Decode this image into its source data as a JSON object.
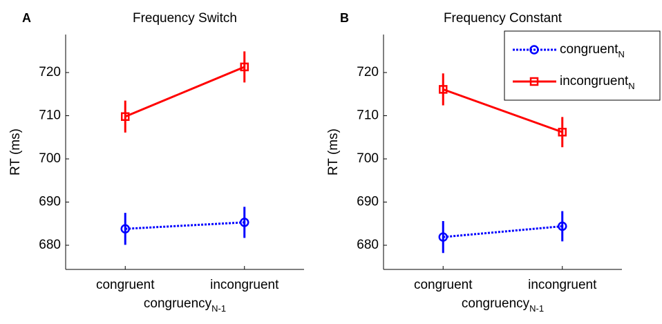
{
  "chart_data": [
    {
      "type": "line",
      "panel_label": "A",
      "title": "Frequency Switch",
      "ylabel": "RT (ms)",
      "xlabel": "congruency",
      "xlabel_subscript": "N-1",
      "categories": [
        "congruent",
        "incongruent"
      ],
      "ylim": [
        674.4,
        728.8
      ],
      "yticks": [
        680,
        690,
        700,
        710,
        720
      ],
      "series": [
        {
          "color": "#0000ff",
          "marker": "circle",
          "linestyle": "dotted",
          "values": [
            683.8,
            685.3
          ],
          "errors": [
            3.7,
            3.6
          ]
        },
        {
          "color": "#ff0000",
          "marker": "square",
          "linestyle": "solid",
          "values": [
            709.8,
            721.3
          ],
          "errors": [
            3.7,
            3.6
          ]
        }
      ]
    },
    {
      "type": "line",
      "panel_label": "B",
      "title": "Frequency Constant",
      "ylabel": "RT (ms)",
      "xlabel": "congruency",
      "xlabel_subscript": "N-1",
      "categories": [
        "congruent",
        "incongruent"
      ],
      "ylim": [
        674.4,
        728.8
      ],
      "yticks": [
        680,
        690,
        700,
        710,
        720
      ],
      "legend": "upper right",
      "series": [
        {
          "name": "congruent",
          "name_subscript": "N",
          "color": "#0000ff",
          "marker": "circle",
          "linestyle": "dotted",
          "values": [
            681.9,
            684.4
          ],
          "errors": [
            3.7,
            3.5
          ]
        },
        {
          "name": "incongruent",
          "name_subscript": "N",
          "color": "#ff0000",
          "marker": "square",
          "linestyle": "solid",
          "values": [
            716.1,
            706.2
          ],
          "errors": [
            3.7,
            3.5
          ]
        }
      ]
    }
  ]
}
